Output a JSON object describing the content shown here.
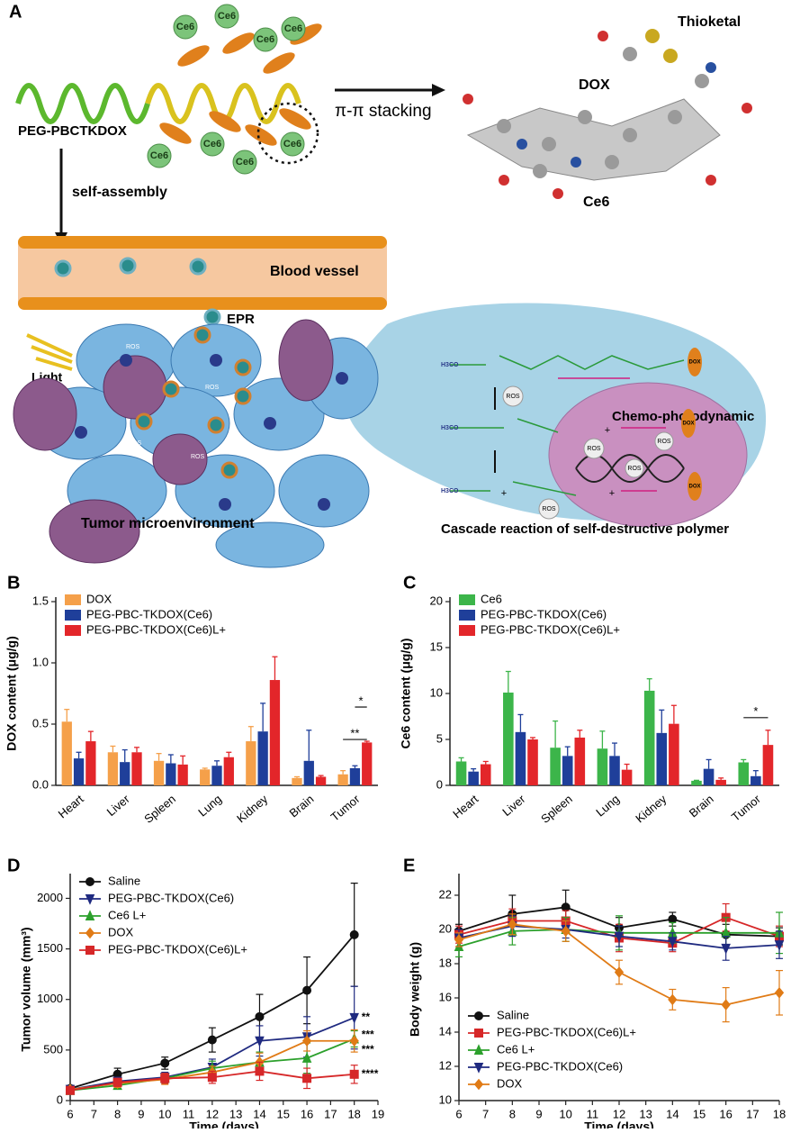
{
  "panel_a": {
    "label": "A",
    "ce6": "Ce6",
    "polymer": "PEG-PBCTKDOX",
    "stacking": "π-π stacking",
    "thioketal": "Thioketal",
    "dox": "DOX",
    "molecule_ce6": "Ce6",
    "self_assembly": "self-assembly",
    "blood_vessel": "Blood vessel",
    "epr": "EPR",
    "light": "Light",
    "ros": "ROS",
    "tumor": "Tumor microenvironment",
    "chemo": "Chemo-photodynamic",
    "cascade": "Cascade reaction of self-destructive polymer",
    "h3co": "H3CO",
    "plus": "+"
  },
  "chart_data": [
    {
      "type": "bar",
      "panel": "B",
      "ylabel": "DOX content (μg/g)",
      "legend": "upper left",
      "categories": [
        "Heart",
        "Liver",
        "Spleen",
        "Lung",
        "Kidney",
        "Brain",
        "Tumor"
      ],
      "ylim": [
        0,
        1.5
      ],
      "yticks": [
        {
          "value": 0,
          "label": "0.0"
        },
        0.5,
        {
          "value": 1,
          "label": "1.0"
        },
        1.5
      ],
      "series": [
        {
          "name": "DOX",
          "color": "#f5a04a",
          "values": [
            0.52,
            0.27,
            0.2,
            0.13,
            0.36,
            0.06,
            0.09
          ],
          "errors": [
            0.1,
            0.05,
            0.06,
            0.01,
            0.12,
            0.01,
            0.03
          ]
        },
        {
          "name": "PEG-PBC-TKDOX(Ce6)",
          "color": "#1f3f9a",
          "values": [
            0.22,
            0.19,
            0.18,
            0.16,
            0.44,
            0.2,
            0.14
          ],
          "errors": [
            0.05,
            0.1,
            0.07,
            0.04,
            0.23,
            0.25,
            0.02
          ]
        },
        {
          "name": "PEG-PBC-TKDOX(Ce6)L+",
          "color": "#e3262a",
          "values": [
            0.36,
            0.27,
            0.17,
            0.23,
            0.86,
            0.07,
            0.35
          ],
          "errors": [
            0.08,
            0.04,
            0.07,
            0.04,
            0.19,
            0.01,
            0.01
          ]
        }
      ],
      "annotations": [
        "*",
        "**"
      ]
    },
    {
      "type": "bar",
      "panel": "C",
      "ylabel": "Ce6 content (μg/g)",
      "legend": "upper left",
      "categories": [
        "Heart",
        "Liver",
        "Spleen",
        "Lung",
        "Kidney",
        "Brain",
        "Tumor"
      ],
      "ylim": [
        0,
        20
      ],
      "yticks": [
        0,
        5,
        10,
        15,
        20
      ],
      "series": [
        {
          "name": "Ce6",
          "color": "#3cb54a",
          "values": [
            2.6,
            10.1,
            4.1,
            4.0,
            10.3,
            0.5,
            2.5
          ],
          "errors": [
            0.4,
            2.3,
            2.9,
            1.9,
            1.3,
            0.05,
            0.3
          ]
        },
        {
          "name": "PEG-PBC-TKDOX(Ce6)",
          "color": "#1f3f9a",
          "values": [
            1.5,
            5.8,
            3.2,
            3.2,
            5.7,
            1.8,
            1.0
          ],
          "errors": [
            0.3,
            1.9,
            1.0,
            1.4,
            2.5,
            1.0,
            0.6
          ]
        },
        {
          "name": "PEG-PBC-TKDOX(Ce6)L+",
          "color": "#e3262a",
          "values": [
            2.3,
            5.0,
            5.2,
            1.7,
            6.7,
            0.6,
            4.4
          ],
          "errors": [
            0.3,
            0.2,
            0.8,
            0.6,
            2.0,
            0.2,
            1.6
          ]
        }
      ],
      "annotations": [
        "*"
      ]
    },
    {
      "type": "line",
      "panel": "D",
      "ylabel": "Tumor volume (mm³)",
      "xlabel": "Time (days)",
      "legend": "upper left",
      "x": [
        6,
        8,
        10,
        12,
        14,
        16,
        18
      ],
      "xlim": [
        6,
        19
      ],
      "xticks": [
        6,
        7,
        8,
        9,
        10,
        11,
        12,
        13,
        14,
        15,
        16,
        17,
        18,
        19
      ],
      "ylim": [
        0,
        2200
      ],
      "yticks": [
        0,
        500,
        1000,
        1500,
        2000
      ],
      "series": [
        {
          "name": "Saline",
          "color": "#111111",
          "marker": "circle",
          "values": [
            120,
            260,
            370,
            600,
            830,
            1090,
            1640
          ],
          "errors": [
            30,
            60,
            60,
            120,
            220,
            330,
            510
          ]
        },
        {
          "name": "PEG-PBC-TKDOX(Ce6)",
          "color": "#1f2a80",
          "marker": "tri-down",
          "values": [
            110,
            190,
            230,
            330,
            590,
            630,
            820
          ],
          "errors": [
            20,
            40,
            50,
            80,
            150,
            200,
            310
          ]
        },
        {
          "name": "Ce6 L+",
          "color": "#2ca02c",
          "marker": "tri-up",
          "values": [
            100,
            150,
            220,
            320,
            380,
            420,
            610
          ],
          "errors": [
            20,
            30,
            40,
            70,
            100,
            150,
            80
          ]
        },
        {
          "name": "DOX",
          "color": "#e07b16",
          "marker": "diamond",
          "values": [
            110,
            170,
            210,
            280,
            380,
            590,
            590
          ],
          "errors": [
            20,
            40,
            50,
            60,
            90,
            100,
            110
          ]
        },
        {
          "name": "PEG-PBC-TKDOX(Ce6)L+",
          "color": "#d62728",
          "marker": "square",
          "values": [
            100,
            180,
            220,
            230,
            290,
            220,
            260
          ],
          "errors": [
            20,
            40,
            50,
            60,
            90,
            100,
            90
          ]
        }
      ],
      "annotations": [
        "**",
        "***",
        "***",
        "****"
      ]
    },
    {
      "type": "line",
      "panel": "E",
      "ylabel": "Body weight (g)",
      "xlabel": "Time (days)",
      "legend": "lower left",
      "x": [
        6,
        8,
        10,
        12,
        14,
        16,
        18
      ],
      "xlim": [
        6,
        18
      ],
      "xticks": [
        6,
        7,
        8,
        9,
        10,
        11,
        12,
        13,
        14,
        15,
        16,
        17,
        18
      ],
      "ylim": [
        10,
        23
      ],
      "yticks": [
        10,
        12,
        14,
        16,
        18,
        20,
        22
      ],
      "series": [
        {
          "name": "Saline",
          "color": "#111111",
          "marker": "circle",
          "values": [
            19.9,
            20.9,
            21.3,
            20.1,
            20.6,
            19.7,
            19.6
          ],
          "errors": [
            0.4,
            1.1,
            1.0,
            0.6,
            0.4,
            0.6,
            0.5
          ]
        },
        {
          "name": "PEG-PBC-TKDOX(Ce6)L+",
          "color": "#d62728",
          "marker": "square",
          "values": [
            19.7,
            20.5,
            20.5,
            19.5,
            19.2,
            20.7,
            19.6
          ],
          "errors": [
            0.5,
            0.7,
            0.6,
            0.8,
            0.5,
            0.8,
            0.6
          ]
        },
        {
          "name": "Ce6 L+",
          "color": "#2ca02c",
          "marker": "tri-up",
          "values": [
            19.0,
            19.9,
            20.0,
            19.8,
            19.8,
            19.8,
            19.8
          ],
          "errors": [
            0.6,
            0.8,
            0.7,
            1.0,
            0.6,
            0.9,
            1.2
          ]
        },
        {
          "name": "PEG-PBC-TKDOX(Ce6)",
          "color": "#1f2a80",
          "marker": "tri-down",
          "values": [
            19.5,
            20.2,
            20.0,
            19.6,
            19.3,
            18.9,
            19.1
          ],
          "errors": [
            0.5,
            0.6,
            0.5,
            0.6,
            0.5,
            0.7,
            0.8
          ]
        },
        {
          "name": "DOX",
          "color": "#e07b16",
          "marker": "diamond",
          "values": [
            19.4,
            20.3,
            19.9,
            17.5,
            15.9,
            15.6,
            16.3
          ],
          "errors": [
            0.4,
            0.6,
            0.6,
            0.7,
            0.6,
            1.0,
            1.3
          ]
        }
      ]
    }
  ]
}
